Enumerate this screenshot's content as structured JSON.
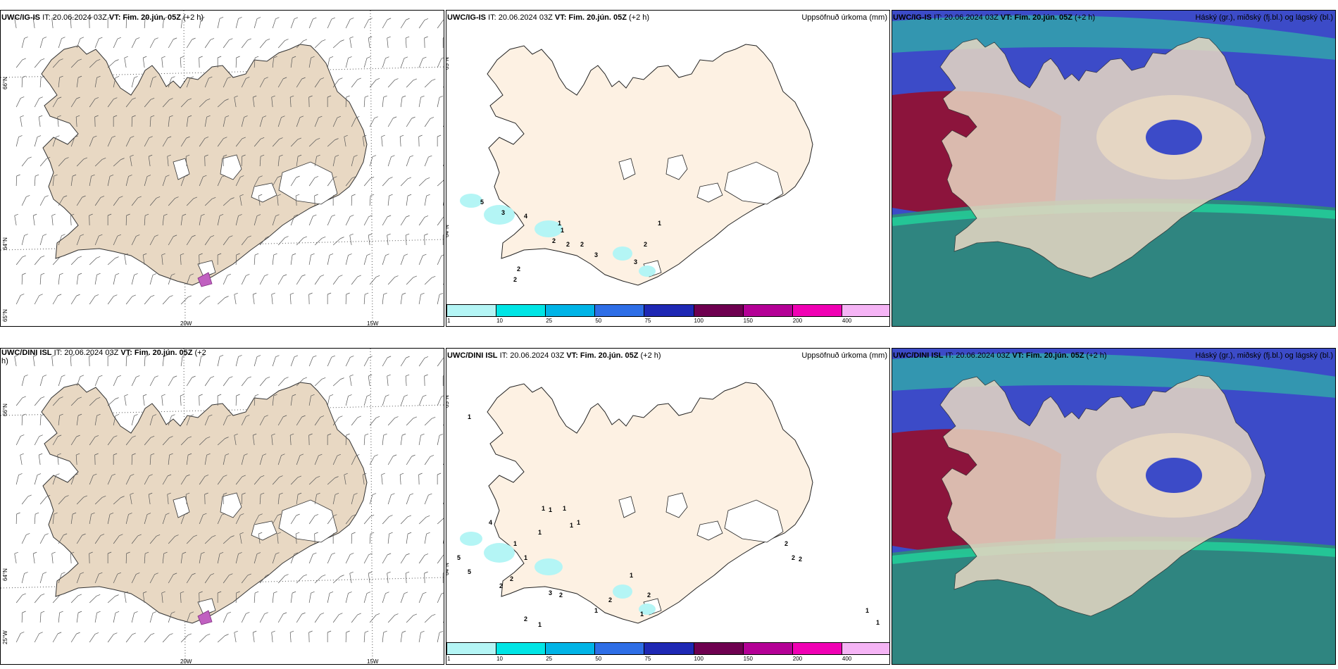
{
  "panels": {
    "p1": {
      "model": "UWC/IG-IS",
      "it": "IT: 20.06.2024 03Z",
      "vt_label": "VT:",
      "vt_value": "Fim. 20.jún. 05Z",
      "lead": "(+2 h)"
    },
    "p2": {
      "model": "UWC/IG-IS",
      "it": "IT: 20.06.2024 03Z",
      "vt_label": "VT:",
      "vt_value": "Fim. 20.jún. 05Z",
      "lead": "(+2 h)",
      "right": "Uppsöfnuð úrkoma (mm)"
    },
    "p3": {
      "model": "UWC/IG-IS",
      "it": "IT: 20.06.2024 03Z",
      "vt_label": "VT:",
      "vt_value": "Fim. 20.jún. 05Z",
      "lead": "(+2 h)",
      "right": "Háský (gr.), miðský (fj.bl.) og lágský (bl.)"
    },
    "p4": {
      "model": "UWC/DINI ISL",
      "it": "IT: 20.06.2024 03Z",
      "vt_label": "VT:",
      "vt_value": "Fim. 20.jún. 05Z",
      "lead": "(+2",
      "lead2": "h)"
    },
    "p5": {
      "model": "UWC/DINI ISL",
      "it": "IT: 20.06.2024 03Z",
      "vt_label": "VT:",
      "vt_value": "Fim. 20.jún. 05Z",
      "lead": "(+2 h)",
      "right": "Uppsöfnuð úrkoma (mm)"
    },
    "p6": {
      "model": "UWC/DINI ISL",
      "it": "IT: 20.06.2024 03Z",
      "vt_label": "VT:",
      "vt_value": "Fim. 20.jún. 05Z",
      "lead": "(+2 h)",
      "right": "Háský (gr.), miðský (fj.bl.) og lágský (bl.)"
    }
  },
  "axes": {
    "lat66": "66°N",
    "lat64": "64°N",
    "lat65": "65°N",
    "lon25": "25°W",
    "lon20": "20W",
    "lon15": "15W"
  },
  "colorbar": {
    "labels": [
      "1",
      "10",
      "25",
      "50",
      "75",
      "100",
      "150",
      "200",
      "400"
    ],
    "colors": [
      "#b4f5f5",
      "#00e5e5",
      "#00b4e6",
      "#2e6ee6",
      "#1e28b4",
      "#6e0050",
      "#b40096",
      "#f000b4",
      "#f5b4f5"
    ]
  },
  "precip_top": [
    "5",
    "3",
    "4",
    "1",
    "1",
    "1",
    "2",
    "2",
    "2",
    "3",
    "2",
    "3",
    "2",
    "2"
  ],
  "precip_bottom": [
    "1",
    "1",
    "1",
    "1",
    "1",
    "1",
    "1",
    "1",
    "4",
    "1",
    "5",
    "5",
    "2",
    "2",
    "1",
    "1",
    "2",
    "3",
    "2",
    "2",
    "1",
    "1",
    "2",
    "2",
    "2",
    "1",
    "1",
    "1",
    "2"
  ],
  "colors": {
    "land": "#e8d8c3",
    "land_light": "#fdf1e3",
    "cloud_high": "#6e3cb4",
    "cloud_mid": "#3c4bc8",
    "cloud_low": "#2d8c78",
    "red_cloud": "#8c143c"
  }
}
